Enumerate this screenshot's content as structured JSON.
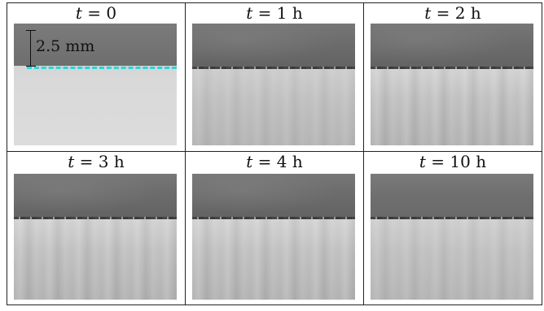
{
  "panels": [
    {
      "t_symbol": "t",
      "t_value": " = 0"
    },
    {
      "t_symbol": "t",
      "t_value": " = 1 h"
    },
    {
      "t_symbol": "t",
      "t_value": " = 2 h"
    },
    {
      "t_symbol": "t",
      "t_value": " = 3 h"
    },
    {
      "t_symbol": "t",
      "t_value": " = 4 h"
    },
    {
      "t_symbol": "t",
      "t_value": " = 10 h"
    }
  ],
  "scale_label": "2.5 mm",
  "colors": {
    "interface_marker": "#2ad6d9",
    "grid_line": "#222222"
  }
}
